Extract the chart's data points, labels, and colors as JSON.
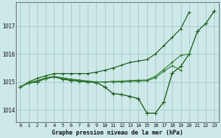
{
  "bg_color": "#cce8e8",
  "grid_color": "#aacccc",
  "line_color_dark": "#1a5c1a",
  "line_color_medium": "#2e7d32",
  "xlabel": "Graphe pression niveau de la mer (hPa)",
  "ylabel_ticks": [
    1014,
    1015,
    1016,
    1017
  ],
  "xlim": [
    -0.5,
    23.5
  ],
  "ylim": [
    1013.55,
    1017.85
  ],
  "x_ticks": [
    0,
    1,
    2,
    3,
    4,
    5,
    6,
    7,
    8,
    9,
    10,
    11,
    12,
    13,
    14,
    15,
    16,
    17,
    18,
    19,
    20,
    21,
    22,
    23
  ],
  "series": [
    {
      "name": "main_zigzag",
      "color": "#1a5c1a",
      "lw": 1.0,
      "marker": "+",
      "ms": 4.0,
      "x": [
        0,
        1,
        2,
        3,
        4,
        5,
        6,
        7,
        8,
        9,
        10,
        11,
        12,
        13,
        14,
        15,
        16,
        17,
        18,
        19,
        20,
        21,
        22,
        23
      ],
      "y": [
        1014.82,
        1014.96,
        1015.0,
        1015.12,
        1015.18,
        1015.1,
        1015.05,
        1015.03,
        1015.0,
        1014.98,
        1014.82,
        1014.58,
        1014.55,
        1014.48,
        1014.4,
        1013.88,
        1013.88,
        1014.28,
        1015.32,
        1015.55,
        1016.0,
        1016.82,
        1017.1,
        1017.55
      ]
    },
    {
      "name": "upper_diagonal",
      "color": "#1a5c1a",
      "lw": 0.9,
      "marker": "+",
      "ms": 3.5,
      "x": [
        0,
        1,
        2,
        3,
        4,
        5,
        6,
        7,
        8,
        9,
        10,
        11,
        12,
        13,
        14,
        15,
        16,
        17,
        18,
        19,
        20
      ],
      "y": [
        1014.82,
        1015.0,
        1015.13,
        1015.22,
        1015.3,
        1015.3,
        1015.3,
        1015.3,
        1015.3,
        1015.35,
        1015.42,
        1015.5,
        1015.6,
        1015.7,
        1015.75,
        1015.8,
        1016.0,
        1016.3,
        1016.6,
        1016.9,
        1017.5
      ]
    },
    {
      "name": "mid_line1",
      "color": "#2e7d32",
      "lw": 0.85,
      "marker": "+",
      "ms": 3.0,
      "x": [
        0,
        1,
        2,
        3,
        4,
        5,
        6,
        7,
        8,
        9,
        10,
        11,
        12,
        13,
        14,
        15,
        16,
        17,
        18,
        19,
        20
      ],
      "y": [
        1014.82,
        1014.97,
        1015.05,
        1015.15,
        1015.2,
        1015.15,
        1015.1,
        1015.07,
        1015.03,
        1015.0,
        1015.0,
        1015.02,
        1015.03,
        1015.05,
        1015.06,
        1015.07,
        1015.2,
        1015.45,
        1015.7,
        1015.95,
        1016.0
      ]
    },
    {
      "name": "mid_line2",
      "color": "#2e7d32",
      "lw": 0.85,
      "marker": "+",
      "ms": 3.0,
      "x": [
        0,
        1,
        2,
        3,
        4,
        5,
        6,
        7,
        8,
        9,
        10,
        11,
        12,
        13,
        14,
        15,
        16,
        17,
        18,
        19
      ],
      "y": [
        1014.82,
        1014.97,
        1015.03,
        1015.12,
        1015.18,
        1015.12,
        1015.08,
        1015.05,
        1015.02,
        1015.0,
        1015.0,
        1015.0,
        1015.0,
        1015.02,
        1015.03,
        1015.04,
        1015.15,
        1015.38,
        1015.58,
        1015.42
      ]
    }
  ]
}
